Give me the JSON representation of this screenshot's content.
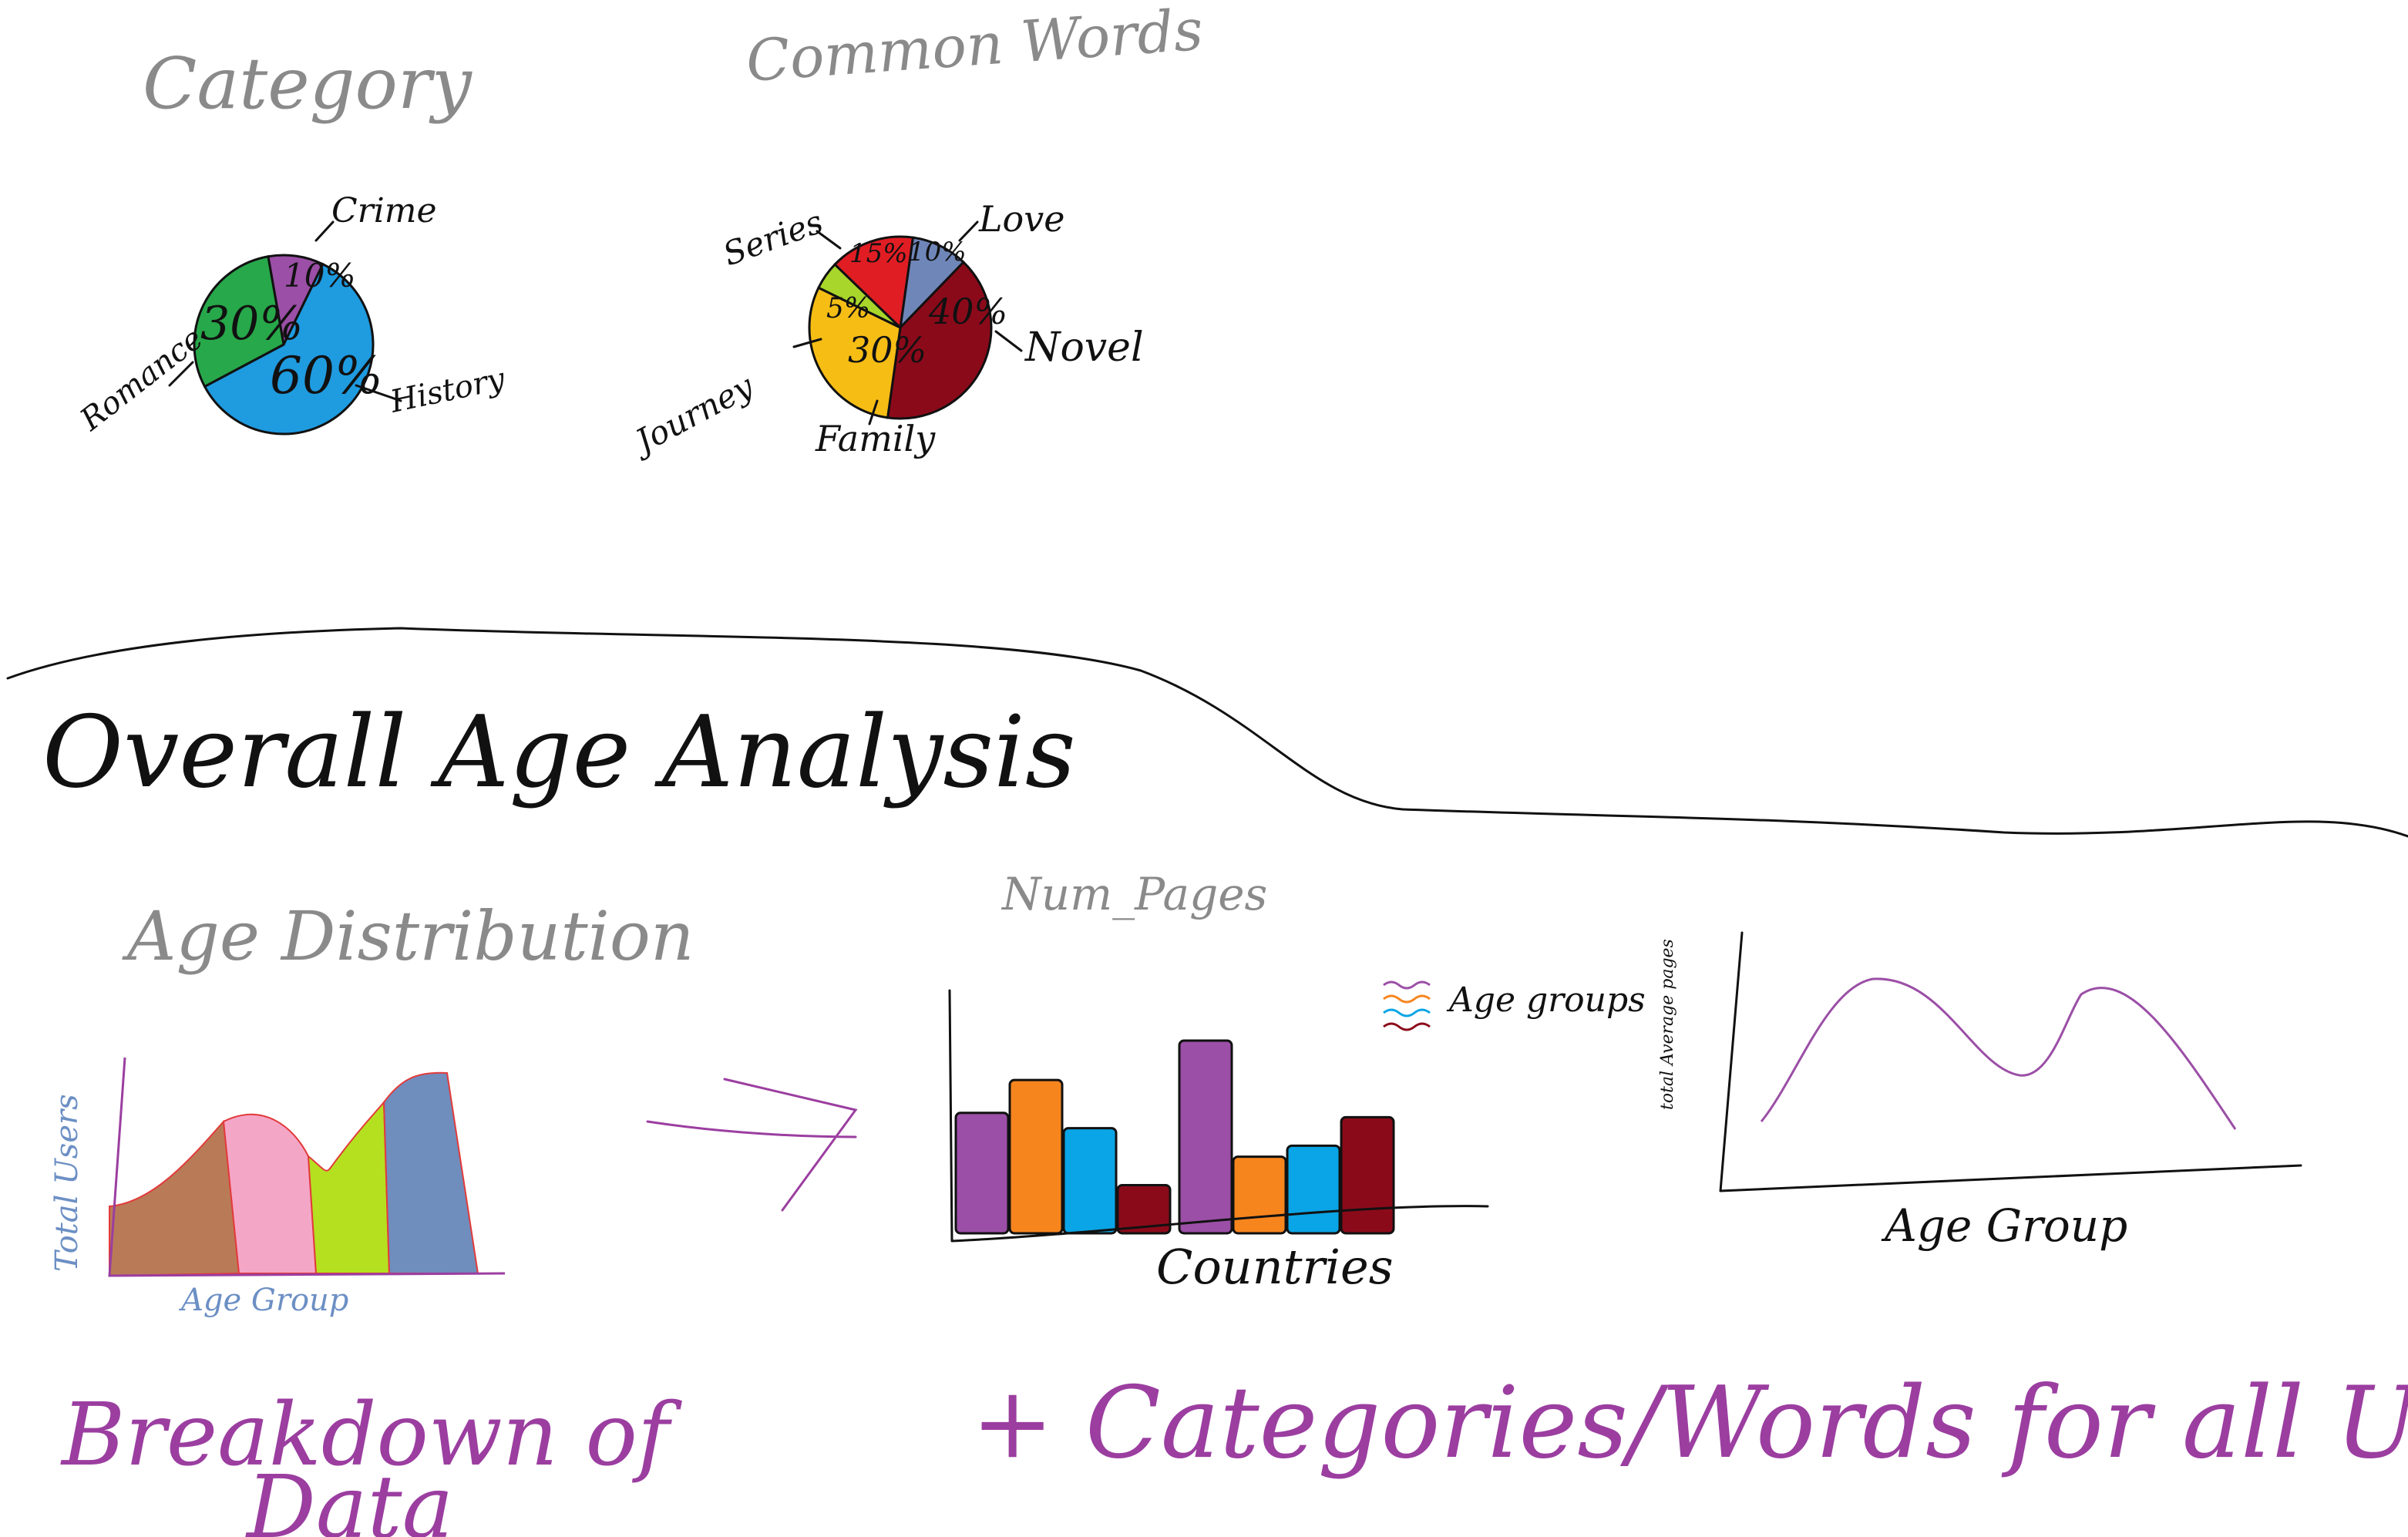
{
  "sections": {
    "overall_title": "Overall Age Analysis",
    "note_left": "Breakdown of",
    "note_left_2": "Data",
    "note_right": "+ Categories/Words for all Users"
  },
  "chart_data": [
    {
      "type": "pie",
      "title": "Category",
      "slices": [
        {
          "label": "Crime",
          "value": 10,
          "value_label": "10%",
          "color": "#9b4fa6"
        },
        {
          "label": "History",
          "value": 60,
          "value_label": "60%",
          "color": "#1f9be0"
        },
        {
          "label": "Romance",
          "value": 30,
          "value_label": "30%",
          "color": "#27a84a"
        }
      ]
    },
    {
      "type": "pie",
      "title": "Common Words",
      "slices": [
        {
          "label": "Love",
          "value": 10,
          "value_label": "10%",
          "color": "#6f86b9"
        },
        {
          "label": "Novel",
          "value": 40,
          "value_label": "40%",
          "color": "#8b0a1a"
        },
        {
          "label": "Family",
          "value": 30,
          "value_label": "30%",
          "color": "#f6bd15"
        },
        {
          "label": "Journey",
          "value": 5,
          "value_label": "5%",
          "color": "#a9d62a"
        },
        {
          "label": "Series",
          "value": 15,
          "value_label": "15%",
          "color": "#e11d24"
        }
      ]
    },
    {
      "type": "area",
      "title": "Age Distribution",
      "xlabel": "Age Group",
      "ylabel": "Total Users",
      "segments": [
        {
          "color": "#b97b57"
        },
        {
          "color": "#f4a6c7"
        },
        {
          "color": "#b5e020"
        },
        {
          "color": "#6f8dbd"
        }
      ]
    },
    {
      "type": "bar",
      "title": "Num_Pages",
      "xlabel": "Countries",
      "legend_title": "Age groups",
      "legend_colors": [
        "#9b4fa6",
        "#f7851e",
        "#0aa5e6",
        "#8b0a1a"
      ],
      "groups": [
        {
          "values": [
            0.55,
            0.7,
            0.48,
            0.22
          ]
        },
        {
          "values": [
            0.88,
            0.35,
            0.4,
            0.53
          ]
        }
      ]
    },
    {
      "type": "line",
      "xlabel": "Age Group",
      "ylabel": "total Average pages",
      "color": "#9b4fa6"
    }
  ]
}
